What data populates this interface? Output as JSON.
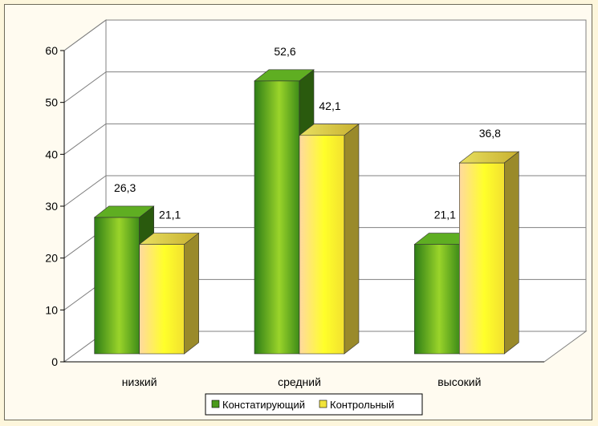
{
  "chart_data": {
    "type": "bar",
    "style": "3d-clustered-column",
    "categories": [
      "низкий",
      "средний",
      "высокий"
    ],
    "series": [
      {
        "name": "Констатирующий",
        "values": [
          26.3,
          52.6,
          21.1
        ],
        "labels": [
          "26,3",
          "52,6",
          "21,1"
        ],
        "color": "#4a9a1c"
      },
      {
        "name": "Контрольный",
        "values": [
          21.1,
          42.1,
          36.8
        ],
        "labels": [
          "21,1",
          "42,1",
          "36,8"
        ],
        "color": "#f2e43a"
      }
    ],
    "y_ticks": [
      "0",
      "10",
      "20",
      "30",
      "40",
      "50",
      "60"
    ],
    "ylim": [
      0,
      60
    ],
    "grid": true,
    "legend_position": "bottom"
  },
  "colors": {
    "background": "#fdf6dc",
    "plot_area": "#ffffff",
    "green_series": "#4a9a1c",
    "yellow_series": "#f2e43a"
  }
}
